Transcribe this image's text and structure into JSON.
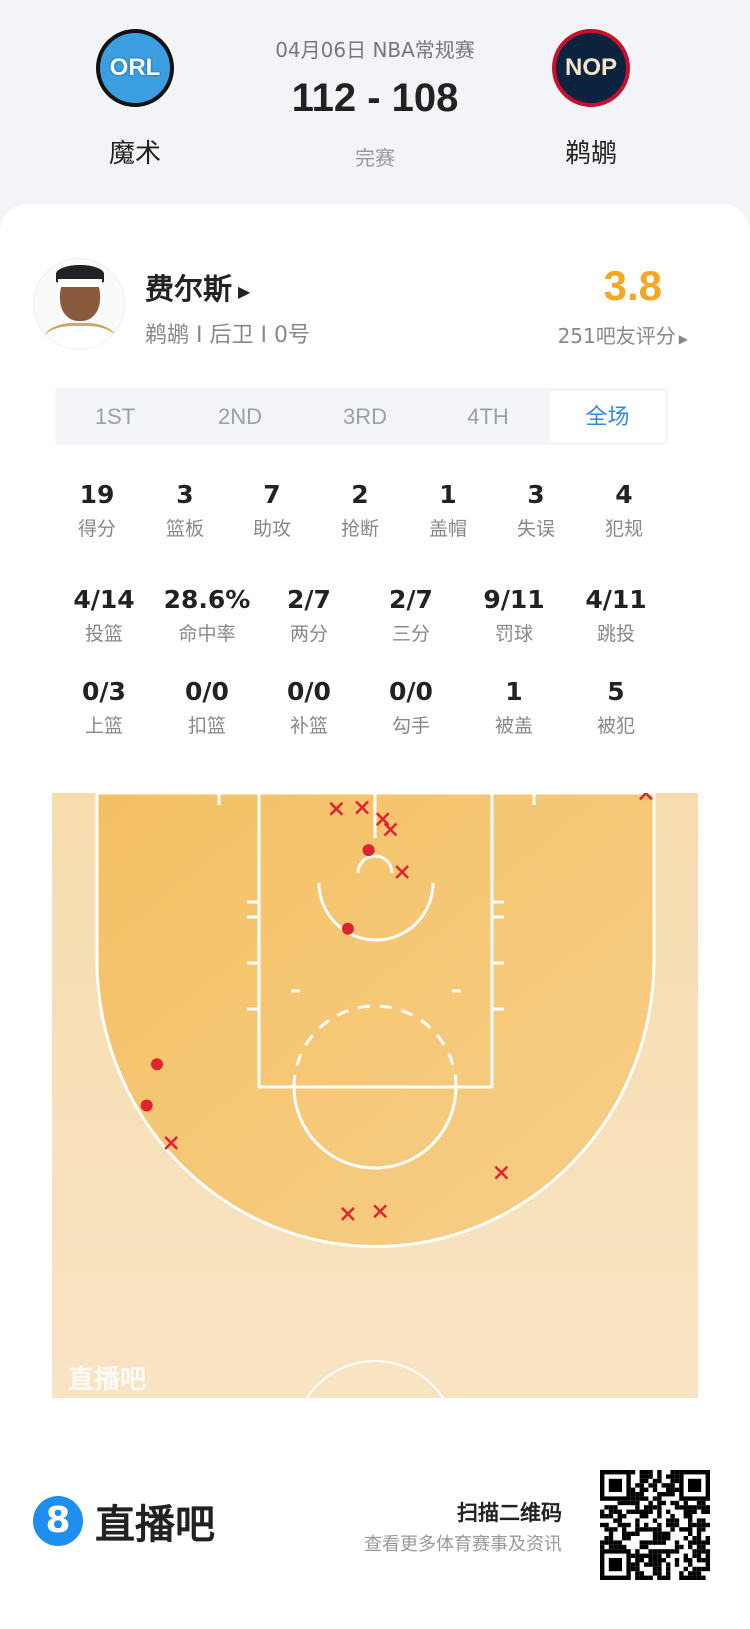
{
  "header": {
    "date_league": "04月06日 NBA常规赛",
    "score": "112 - 108",
    "status": "完赛",
    "home": {
      "abbr": "ORL",
      "name": "魔术",
      "color": "#0a7fd0"
    },
    "away": {
      "abbr": "NOP",
      "name": "鹈鹕",
      "color": "#0c2340"
    }
  },
  "player": {
    "name": "费尔斯",
    "info": "鹈鹕 I 后卫 I 0号",
    "rating": "3.8",
    "rating_count": "251吧友评分",
    "rating_color": "#f5a623"
  },
  "tabs": [
    {
      "label": "1ST"
    },
    {
      "label": "2ND"
    },
    {
      "label": "3RD"
    },
    {
      "label": "4TH"
    },
    {
      "label": "全场",
      "active": true
    }
  ],
  "stats_row1": [
    {
      "v": "19",
      "l": "得分"
    },
    {
      "v": "3",
      "l": "篮板"
    },
    {
      "v": "7",
      "l": "助攻"
    },
    {
      "v": "2",
      "l": "抢断"
    },
    {
      "v": "1",
      "l": "盖帽"
    },
    {
      "v": "3",
      "l": "失误"
    },
    {
      "v": "4",
      "l": "犯规"
    }
  ],
  "stats_row2": [
    {
      "v": "4/14",
      "l": "投篮"
    },
    {
      "v": "28.6%",
      "l": "命中率"
    },
    {
      "v": "2/7",
      "l": "两分"
    },
    {
      "v": "2/7",
      "l": "三分"
    },
    {
      "v": "9/11",
      "l": "罚球"
    },
    {
      "v": "4/11",
      "l": "跳投"
    }
  ],
  "stats_row3": [
    {
      "v": "0/3",
      "l": "上篮"
    },
    {
      "v": "0/0",
      "l": "扣篮"
    },
    {
      "v": "0/0",
      "l": "补篮"
    },
    {
      "v": "0/0",
      "l": "勾手"
    },
    {
      "v": "1",
      "l": "被盖"
    },
    {
      "v": "5",
      "l": "被犯"
    }
  ],
  "chart_data": {
    "type": "scatter",
    "watermark": "直播吧",
    "units": "feet from basket",
    "made": [
      [
        -0.5,
        -1.0
      ],
      [
        -2.1,
        5.1
      ],
      [
        -16.9,
        15.6
      ],
      [
        -17.7,
        18.8
      ]
    ],
    "missed": [
      [
        -3.0,
        -4.2
      ],
      [
        -1.0,
        -4.3
      ],
      [
        0.6,
        -3.4
      ],
      [
        1.2,
        -2.6
      ],
      [
        2.1,
        0.7
      ],
      [
        21.0,
        -5.4
      ],
      [
        -15.8,
        21.7
      ],
      [
        -2.1,
        27.2
      ],
      [
        0.4,
        27.0
      ],
      [
        9.8,
        24.0
      ]
    ],
    "marker_color": "#e0242f"
  },
  "footer": {
    "brand": "直播吧",
    "brand_icon": "8",
    "scan": "扫描二维码",
    "more": "查看更多体育赛事及资讯"
  }
}
